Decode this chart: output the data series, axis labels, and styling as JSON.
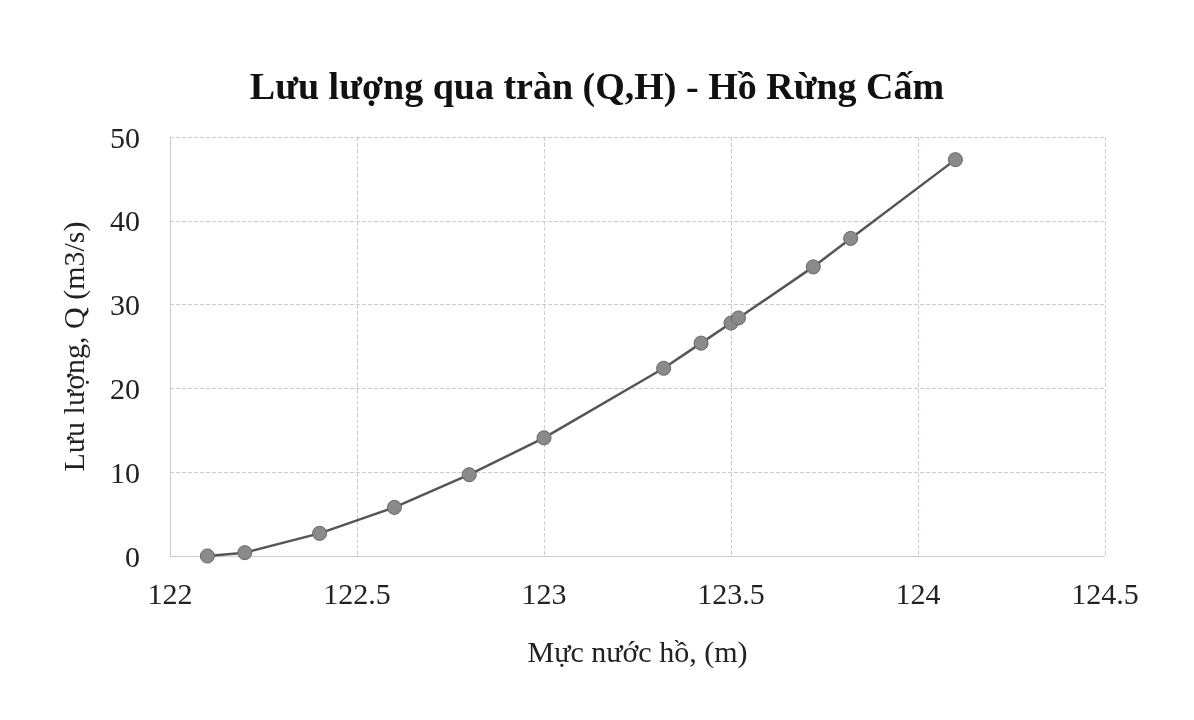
{
  "chart_data": {
    "type": "line",
    "title": "Lưu lượng qua tràn (Q,H) - Hồ Rừng Cấm",
    "xlabel": "Mực nước hồ, (m)",
    "ylabel": "Lưu lượng, Q (m3/s)",
    "series": [
      {
        "color": "#555555",
        "x": [
          122.1,
          122.2,
          122.4,
          122.6,
          122.8,
          123.0,
          123.32,
          123.42,
          123.5,
          123.52,
          123.72,
          123.82,
          124.1
        ],
        "values": [
          0,
          0.4,
          2.7,
          5.8,
          9.7,
          14.1,
          22.4,
          25.4,
          27.8,
          28.4,
          34.5,
          37.9,
          47.3
        ]
      }
    ],
    "xlim": [
      122,
      124.5
    ],
    "xticks": [
      122,
      122.5,
      123,
      123.5,
      124,
      124.5
    ],
    "ylim": [
      0,
      50
    ],
    "yticks": [
      0,
      10,
      20,
      30,
      40,
      50
    ],
    "grid": true,
    "marker": "circle",
    "line_style": "solid"
  }
}
